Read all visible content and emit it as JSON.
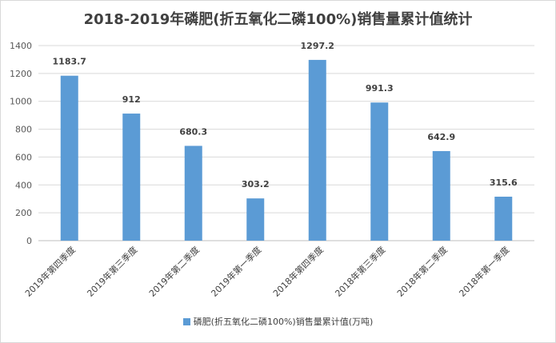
{
  "chart_data": {
    "type": "bar",
    "title": "2018-2019年磷肥(折五氧化二磷100%)销售量累计值统计",
    "categories": [
      "2019年第四季度",
      "2019年第三季度",
      "2019年第二季度",
      "2019年第一季度",
      "2018年第四季度",
      "2018年第三季度",
      "2018年第二季度",
      "2018年第一季度"
    ],
    "series": [
      {
        "name": "磷肥(折五氧化二磷100%)销售量累计值(万吨)",
        "values": [
          1183.7,
          912,
          680.3,
          303.2,
          1297.2,
          991.3,
          642.9,
          315.6
        ],
        "color": "#5b9bd5"
      }
    ],
    "data_labels": [
      "1183.7",
      "912",
      "680.3",
      "303.2",
      "1297.2",
      "991.3",
      "642.9",
      "315.6"
    ],
    "ylim": [
      0,
      1400
    ],
    "yticks": [
      0,
      200,
      400,
      600,
      800,
      1000,
      1200,
      1400
    ],
    "grid": true,
    "legend_position": "bottom"
  }
}
